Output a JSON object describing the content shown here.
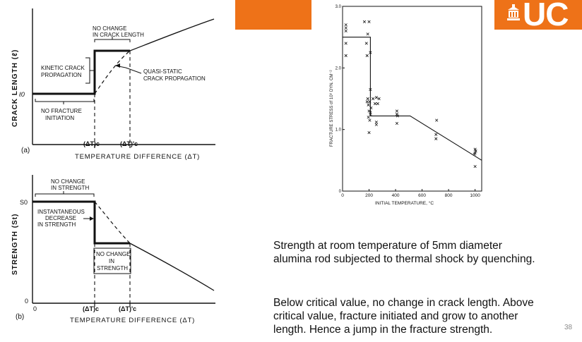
{
  "banner": {
    "color": "#ee7218",
    "logo_text": "UC"
  },
  "diagram_a": {
    "panel_label": "(a)",
    "ylabel": "CRACK LENGTH (ℓ)",
    "xlabel": "TEMPERATURE DIFFERENCE (ΔT)",
    "origin_label": "ℓ0",
    "tick_1": "(ΔT)c",
    "tick_2": "(ΔT)'c",
    "ann_no_change_1": "NO CHANGE",
    "ann_no_change_2": "IN CRACK LENGTH",
    "ann_kinetic_1": "KINETIC CRACK",
    "ann_kinetic_2": "PROPAGATION",
    "ann_quasi_1": "QUASI-STATIC",
    "ann_quasi_2": "CRACK PROPAGATION",
    "ann_no_fracture_1": "NO FRACTURE",
    "ann_no_fracture_2": "INITIATION"
  },
  "diagram_b": {
    "panel_label": "(b)",
    "ylabel": "STRENGTH (St)",
    "xlabel": "TEMPERATURE DIFFERENCE (ΔT)",
    "s0_label": "S0",
    "zero_label": "0",
    "origin_label": "0",
    "tick_1": "(ΔT)c",
    "tick_2": "(ΔT)'c",
    "ann_no_change_1": "NO CHANGE",
    "ann_no_change_2": "IN STRENGTH",
    "ann_instant_1": "INSTANTANEOUS",
    "ann_instant_2": "DECREASE",
    "ann_instant_3": "IN STRENGTH",
    "ann_box_1": "NO CHANGE",
    "ann_box_2": "IN",
    "ann_box_3": "STRENGTH"
  },
  "chart_data": {
    "type": "scatter",
    "xlabel": "INITIAL TEMPERATURE, °C",
    "ylabel": "FRACTURE STRESS σf 10⁹ DYN. CM⁻²",
    "xlim": [
      0,
      1050
    ],
    "ylim": [
      0,
      3.0
    ],
    "x_ticks": [
      0,
      200,
      400,
      600,
      800,
      1000
    ],
    "y_ticks": [
      0,
      1.0,
      2.0,
      3.0
    ],
    "x_tick_labels": [
      "0",
      "200",
      "400",
      "600",
      "800",
      "1000"
    ],
    "y_tick_labels": [
      "0",
      "1.0",
      "2.0",
      "3.0"
    ],
    "marker": "x",
    "points": [
      {
        "x": 25,
        "y": 2.7
      },
      {
        "x": 25,
        "y": 2.65
      },
      {
        "x": 25,
        "y": 2.6
      },
      {
        "x": 25,
        "y": 2.4
      },
      {
        "x": 25,
        "y": 2.2
      },
      {
        "x": 165,
        "y": 2.75
      },
      {
        "x": 200,
        "y": 2.75
      },
      {
        "x": 190,
        "y": 2.55
      },
      {
        "x": 180,
        "y": 2.4
      },
      {
        "x": 185,
        "y": 2.2
      },
      {
        "x": 210,
        "y": 2.25
      },
      {
        "x": 210,
        "y": 1.65
      },
      {
        "x": 190,
        "y": 1.5
      },
      {
        "x": 185,
        "y": 1.45
      },
      {
        "x": 195,
        "y": 1.4
      },
      {
        "x": 205,
        "y": 1.45
      },
      {
        "x": 230,
        "y": 1.5
      },
      {
        "x": 255,
        "y": 1.52
      },
      {
        "x": 275,
        "y": 1.5
      },
      {
        "x": 215,
        "y": 1.35
      },
      {
        "x": 245,
        "y": 1.42
      },
      {
        "x": 265,
        "y": 1.42
      },
      {
        "x": 200,
        "y": 1.3
      },
      {
        "x": 210,
        "y": 1.28
      },
      {
        "x": 195,
        "y": 1.2
      },
      {
        "x": 205,
        "y": 1.15
      },
      {
        "x": 210,
        "y": 1.25
      },
      {
        "x": 200,
        "y": 0.95
      },
      {
        "x": 255,
        "y": 1.12
      },
      {
        "x": 255,
        "y": 1.08
      },
      {
        "x": 410,
        "y": 1.3
      },
      {
        "x": 410,
        "y": 1.25
      },
      {
        "x": 415,
        "y": 1.22
      },
      {
        "x": 410,
        "y": 1.1
      },
      {
        "x": 710,
        "y": 1.15
      },
      {
        "x": 705,
        "y": 0.92
      },
      {
        "x": 705,
        "y": 0.85
      },
      {
        "x": 1000,
        "y": 0.68
      },
      {
        "x": 1005,
        "y": 0.65
      },
      {
        "x": 1000,
        "y": 0.62
      },
      {
        "x": 995,
        "y": 0.6
      },
      {
        "x": 1000,
        "y": 0.4
      }
    ],
    "fit_line": [
      {
        "x": 0,
        "y": 2.5
      },
      {
        "x": 210,
        "y": 2.5
      },
      {
        "x": 210,
        "y": 1.22
      },
      {
        "x": 510,
        "y": 1.22
      },
      {
        "x": 1050,
        "y": 0.5
      }
    ]
  },
  "text": {
    "para1_line1": "Strength at room temperature of 5mm diameter",
    "para1_line2": "alumina rod subjected to thermal shock by quenching.",
    "para2_line1": "Below critical value, no change in crack length. Above",
    "para2_line2": "critical value, fracture initiated and grow to another",
    "para2_line3": "length. Hence a jump in the fracture strength."
  },
  "slide_number": "38"
}
